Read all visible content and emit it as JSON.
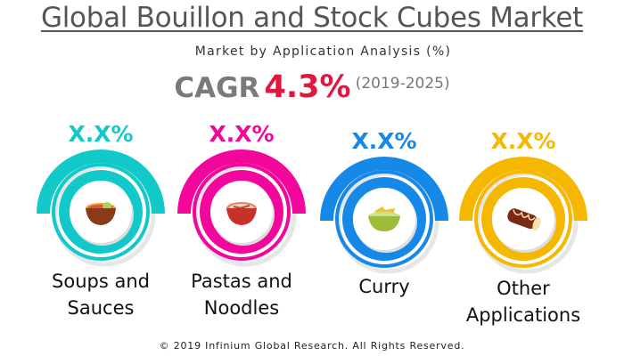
{
  "title": "Global Bouillon and Stock Cubes Market",
  "subtitle": "Market by Application Analysis (%)",
  "cagr": {
    "label": "CAGR",
    "value": "4.3%",
    "period": "(2019-2025)"
  },
  "segments": [
    {
      "label_line1": "Soups and",
      "label_line2": "Sauces",
      "value": "X.X%",
      "color": "#12c9c9",
      "icon": "soup-bowl-icon"
    },
    {
      "label_line1": "Pastas and",
      "label_line2": "Noodles",
      "value": "X.X%",
      "color": "#f2069b",
      "icon": "noodle-bowl-icon"
    },
    {
      "label_line1": "Curry",
      "label_line2": "",
      "value": "X.X%",
      "color": "#1588e8",
      "icon": "curry-bowl-icon"
    },
    {
      "label_line1": "Other",
      "label_line2": "Applications",
      "value": "X.X%",
      "color": "#f5b700",
      "icon": "chocolate-roll-icon"
    }
  ],
  "footer": "© 2019 Infinium Global Research. All Rights Reserved."
}
